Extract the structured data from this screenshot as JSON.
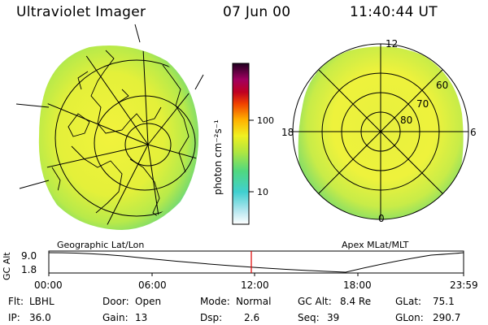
{
  "header": {
    "instrument": "Ultraviolet Imager",
    "date": "07 Jun 00",
    "time": "11:40:44 UT"
  },
  "left_panel": {
    "caption": "Geographic Lat/Lon"
  },
  "right_panel": {
    "caption": "Apex MLat/MLT",
    "mlt_labels": [
      "12",
      "18",
      "6",
      "0"
    ],
    "lat_labels": [
      "60",
      "70",
      "80"
    ]
  },
  "colorbar": {
    "ticks": [
      "100",
      "10"
    ],
    "label": "photon cm⁻²s⁻¹"
  },
  "timeline": {
    "ylabel": "GC Alt",
    "ymax": "9.0",
    "ymin": "1.8",
    "x_ticks": [
      "00:00",
      "06:00",
      "12:00",
      "18:00",
      "23:59"
    ],
    "marker_time": "11:40"
  },
  "info": {
    "flt_label": "Flt:",
    "flt_value": "LBHL",
    "ip_label": "IP:",
    "ip_value": "36.0",
    "door_label": "Door:",
    "door_value": "Open",
    "gain_label": "Gain:",
    "gain_value": "13",
    "mode_label": "Mode:",
    "mode_value": "Normal",
    "dsp_label": "Dsp:",
    "dsp_value": "2.6",
    "gcalt_label": "GC Alt:",
    "gcalt_value": "8.4 Re",
    "seq_label": "Seq:",
    "seq_value": "39",
    "glat_label": "GLat:",
    "glat_value": "75.1",
    "glon_label": "GLon:",
    "glon_value": "290.7"
  },
  "colors": {
    "image_fill": "#e8f03c",
    "image_edge": "#7ee05a",
    "image_rim": "#40d8d8",
    "marker": "#e00000"
  }
}
